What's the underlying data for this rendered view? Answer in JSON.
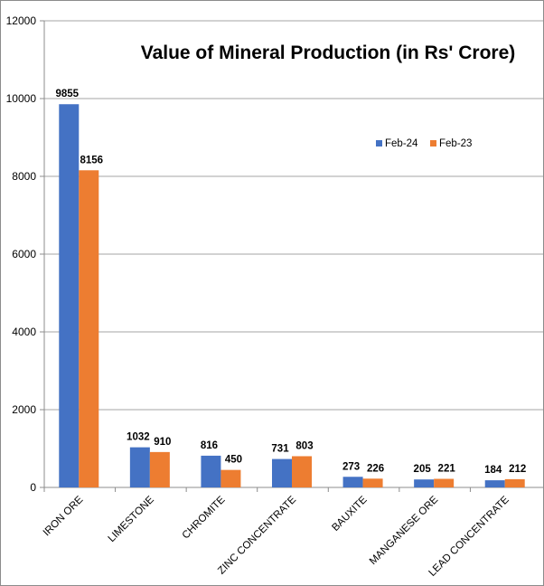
{
  "chart_data": {
    "type": "bar",
    "title": "Value of Mineral Production (in Rs' Crore)",
    "xlabel": "",
    "ylabel": "",
    "ylim": [
      0,
      12000
    ],
    "yticks": [
      0,
      2000,
      4000,
      6000,
      8000,
      10000,
      12000
    ],
    "grid": true,
    "legend_position": "top-right",
    "categories": [
      "IRON ORE",
      "LIMESTONE",
      "CHROMITE",
      "ZINC CONCENTRATE",
      "BAUXITE",
      "MANGANESE ORE",
      "LEAD CONCENTRATE"
    ],
    "series": [
      {
        "name": "Feb-24",
        "color": "#4472c4",
        "values": [
          9855,
          1032,
          816,
          731,
          273,
          205,
          184
        ]
      },
      {
        "name": "Feb-23",
        "color": "#ed7d31",
        "values": [
          8156,
          910,
          450,
          803,
          226,
          221,
          212
        ]
      }
    ]
  }
}
